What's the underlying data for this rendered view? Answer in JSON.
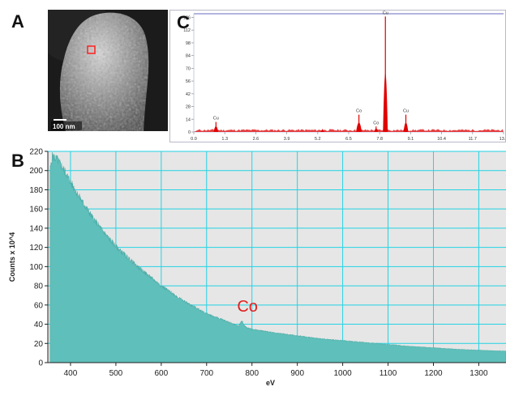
{
  "panels": {
    "a_label": "A",
    "b_label": "B",
    "c_label": "C",
    "scalebar_text": "100 nm"
  },
  "chart_data": [
    {
      "type": "bar",
      "panel": "C",
      "title": "",
      "xlabel": "",
      "ylabel": "",
      "xlim": [
        0.0,
        13.0
      ],
      "ylim": [
        0,
        130
      ],
      "x_ticks": [
        0.0,
        1.3,
        2.6,
        3.9,
        5.2,
        6.5,
        7.8,
        9.1,
        10.4,
        11.7,
        13.0
      ],
      "x_tick_labels": [
        "0.0",
        "1.3",
        "2.6",
        "3.9",
        "5.2",
        "6.5",
        "7.8",
        "9.1",
        "10.4",
        "11.7",
        "13.0"
      ],
      "y_ticks": [
        0,
        14,
        28,
        42,
        56,
        70,
        84,
        98,
        112,
        126
      ],
      "y_tick_labels": [
        "0",
        "14",
        "28",
        "42",
        "56",
        "70",
        "84",
        "98",
        "112",
        "126"
      ],
      "peaks": [
        {
          "label": "Cu",
          "x": 0.93,
          "y": 11,
          "width": 0.1
        },
        {
          "label": "",
          "x": 5.4,
          "y": 3,
          "width": 0.08
        },
        {
          "label": "Co",
          "x": 6.93,
          "y": 19,
          "width": 0.12
        },
        {
          "label": "Co",
          "x": 7.65,
          "y": 6,
          "width": 0.08
        },
        {
          "label": "Cu",
          "x": 8.04,
          "y": 127,
          "width": 0.1
        },
        {
          "label": "Cu",
          "x": 8.9,
          "y": 19,
          "width": 0.1
        }
      ],
      "colors": {
        "spectrum": "#e00000",
        "frame": "#9b9bd6"
      }
    },
    {
      "type": "area",
      "panel": "B",
      "title": "",
      "xlabel": "eV",
      "ylabel": "Counts x 10^4",
      "xlim": [
        350,
        1360
      ],
      "ylim": [
        0,
        220
      ],
      "grid": true,
      "x_ticks": [
        400,
        500,
        600,
        700,
        800,
        900,
        1000,
        1100,
        1200,
        1300
      ],
      "x_tick_labels": [
        "400",
        "500",
        "600",
        "700",
        "800",
        "900",
        "1000",
        "1100",
        "1200",
        "1300"
      ],
      "y_ticks": [
        0,
        20,
        40,
        60,
        80,
        100,
        120,
        140,
        160,
        180,
        200,
        220
      ],
      "y_tick_labels": [
        "0",
        "20",
        "40",
        "60",
        "80",
        "100",
        "120",
        "140",
        "160",
        "180",
        "200",
        "220"
      ],
      "x": [
        355,
        360,
        370,
        380,
        390,
        400,
        420,
        450,
        480,
        500,
        550,
        600,
        650,
        700,
        750,
        770,
        778,
        782,
        790,
        800,
        850,
        900,
        950,
        1000,
        1050,
        1100,
        1150,
        1200,
        1250,
        1300,
        1360
      ],
      "y": [
        200,
        215,
        212,
        205,
        197,
        188,
        172,
        150,
        132,
        121,
        99,
        80,
        64,
        51,
        42,
        38,
        44,
        39,
        36,
        35,
        31,
        28,
        25,
        23,
        21,
        19,
        17,
        15.5,
        14,
        13,
        12
      ],
      "annotations": [
        {
          "text": "Co",
          "x": 790,
          "y": 53
        }
      ],
      "colors": {
        "fill": "#5fbfba",
        "plot_bg": "#e6e6e6",
        "grid": "#22d3e3",
        "annotation": "#e02020"
      }
    }
  ]
}
